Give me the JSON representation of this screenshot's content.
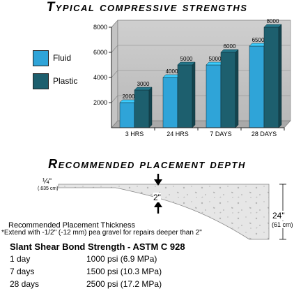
{
  "chart_data": {
    "type": "bar",
    "title": "Typical compressive strengths",
    "categories": [
      "3 HRS",
      "24 HRS",
      "7 DAYS",
      "28 DAYS"
    ],
    "series": [
      {
        "name": "Fluid",
        "values": [
          2000,
          4000,
          5000,
          6500
        ],
        "color": "#2fa4d8"
      },
      {
        "name": "Plastic",
        "values": [
          3000,
          5000,
          6000,
          8000
        ],
        "color": "#1d5f6e"
      }
    ],
    "ylim": [
      0,
      8000
    ],
    "yticks": [
      "2000",
      "4000",
      "6000",
      "8000"
    ],
    "legend": "left",
    "grid": true
  },
  "diagram": {
    "title": "Recommended placement depth",
    "thin_label": "¼\"",
    "thin_metric": "(.635 cm)",
    "mid_label": "2\"",
    "depth_label": "24\"",
    "depth_metric": "(61 cm)",
    "caption_line1": "Recommended Placement Thickness",
    "caption_line2": "*Extend with -1/2\" (-12 mm) pea gravel for repairs deeper than 2\""
  },
  "bond": {
    "heading": "Slant Shear Bond Strength - ASTM C 928",
    "rows": [
      {
        "age": "1 day",
        "value": "1000 psi (6.9 MPa)"
      },
      {
        "age": "7 days",
        "value": "1500 psi (10.3 MPa)"
      },
      {
        "age": "28 days",
        "value": "2500 psi (17.2 MPa)"
      }
    ]
  }
}
